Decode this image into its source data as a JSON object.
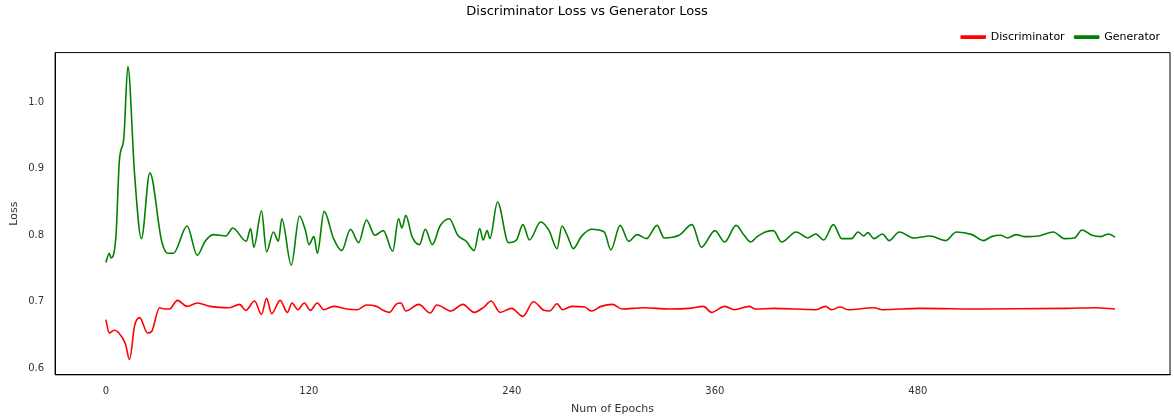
{
  "chart_data": {
    "type": "line",
    "title": "Discriminator Loss vs Generator Loss",
    "xlabel": "Num of Epochs",
    "ylabel": "Loss",
    "xlim": [
      -30,
      629
    ],
    "ylim": [
      0.59,
      1.075
    ],
    "xticks": [
      0,
      120,
      240,
      360,
      480
    ],
    "yticks": [
      0.6,
      0.7,
      0.8,
      0.9,
      {
        "value": 1,
        "label": "1.0"
      }
    ],
    "grid": false,
    "legend": "top right",
    "marker": "none",
    "line_style": "solid",
    "series": [
      {
        "name": "Discriminator",
        "color": "#ff0000",
        "x": [
          0,
          2,
          5,
          7.7,
          11.5,
          14,
          17,
          20,
          24.6,
          27,
          31.7,
          34.6,
          37.5,
          42.3,
          48,
          54,
          61.5,
          73,
          79,
          82.7,
          87.9,
          92,
          95,
          98,
          103,
          107.3,
          110,
          113.5,
          117.3,
          120.8,
          125,
          128.8,
          134.6,
          142.3,
          148.5,
          154.2,
          160,
          164.8,
          167.7,
          171.5,
          174.4,
          177.3,
          185,
          191.7,
          195.6,
          204,
          211,
          217.7,
          223.5,
          227.7,
          233,
          239.8,
          246.5,
          252.7,
          259,
          262.3,
          266.7,
          270,
          275.4,
          283,
          287,
          292.7,
          299.4,
          305,
          317.7,
          333,
          344.6,
          353.3,
          358,
          365.8,
          371.5,
          380.2,
          384,
          394.6,
          419.6,
          425.4,
          429,
          434,
          438.8,
          454,
          459,
          481,
          519.5,
          567.7,
          585,
          596.5
        ],
        "values": [
          0.673,
          0.653,
          0.657,
          0.653,
          0.637,
          0.613,
          0.664,
          0.676,
          0.653,
          0.655,
          0.691,
          0.689,
          0.689,
          0.702,
          0.693,
          0.698,
          0.693,
          0.691,
          0.696,
          0.687,
          0.701,
          0.681,
          0.705,
          0.682,
          0.702,
          0.684,
          0.698,
          0.688,
          0.698,
          0.687,
          0.698,
          0.688,
          0.693,
          0.689,
          0.688,
          0.695,
          0.693,
          0.686,
          0.684,
          0.696,
          0.698,
          0.686,
          0.696,
          0.683,
          0.695,
          0.686,
          0.696,
          0.684,
          0.692,
          0.701,
          0.684,
          0.69,
          0.678,
          0.7,
          0.687,
          0.686,
          0.697,
          0.688,
          0.693,
          0.692,
          0.686,
          0.693,
          0.696,
          0.689,
          0.691,
          0.689,
          0.69,
          0.693,
          0.684,
          0.693,
          0.688,
          0.693,
          0.689,
          0.69,
          0.688,
          0.693,
          0.688,
          0.692,
          0.688,
          0.691,
          0.688,
          0.69,
          0.689,
          0.69,
          0.691,
          0.689
        ]
      },
      {
        "name": "Generator",
        "color": "#008000",
        "x": [
          0,
          2,
          3,
          6,
          8,
          10.6,
          13,
          17,
          21,
          26,
          33,
          36.5,
          40,
          48,
          54,
          58.7,
          63.5,
          71,
          75,
          83,
          85.6,
          87.5,
          92,
          95,
          99,
          102,
          104,
          109.6,
          114.4,
          118,
          120,
          123,
          125,
          129,
          134.6,
          139.4,
          144.6,
          149.4,
          154,
          159,
          164,
          169.6,
          173,
          175,
          177.3,
          181,
          185.4,
          188.8,
          193,
          197.5,
          203,
          208,
          213,
          217.7,
          221,
          223,
          225.4,
          227,
          231.5,
          238,
          242.7,
          246.5,
          250.4,
          257,
          262,
          266.7,
          269.6,
          273,
          276.3,
          281,
          287,
          294.6,
          298.5,
          304,
          309,
          314,
          319.6,
          325.8,
          330,
          338.8,
          346.5,
          352,
          360,
          365.8,
          372.5,
          377.3,
          381,
          385,
          389.8,
          394.6,
          399.4,
          408,
          415,
          419.6,
          424.4,
          430,
          435,
          440.8,
          444.6,
          448,
          450.4,
          454,
          459,
          463,
          469,
          477.5,
          487,
          496.5,
          502.7,
          512,
          518.7,
          523.5,
          529,
          533,
          538,
          542.7,
          551.4,
          560,
          566.7,
          572.5,
          577,
          583,
          588,
          592.7,
          596.5
        ],
        "values": [
          0.759,
          0.773,
          0.766,
          0.8,
          0.913,
          0.946,
          1.054,
          0.891,
          0.795,
          0.894,
          0.791,
          0.773,
          0.773,
          0.814,
          0.77,
          0.791,
          0.801,
          0.799,
          0.811,
          0.791,
          0.81,
          0.782,
          0.837,
          0.775,
          0.805,
          0.791,
          0.825,
          0.755,
          0.829,
          0.807,
          0.786,
          0.798,
          0.773,
          0.836,
          0.795,
          0.777,
          0.809,
          0.789,
          0.823,
          0.8,
          0.807,
          0.776,
          0.825,
          0.811,
          0.83,
          0.798,
          0.786,
          0.809,
          0.786,
          0.814,
          0.825,
          0.8,
          0.791,
          0.777,
          0.81,
          0.793,
          0.807,
          0.795,
          0.85,
          0.789,
          0.793,
          0.816,
          0.793,
          0.82,
          0.807,
          0.78,
          0.814,
          0.798,
          0.78,
          0.798,
          0.809,
          0.805,
          0.778,
          0.815,
          0.791,
          0.801,
          0.795,
          0.815,
          0.796,
          0.8,
          0.816,
          0.782,
          0.807,
          0.79,
          0.815,
          0.8,
          0.79,
          0.798,
          0.805,
          0.807,
          0.79,
          0.805,
          0.796,
          0.802,
          0.793,
          0.816,
          0.795,
          0.795,
          0.805,
          0.799,
          0.804,
          0.795,
          0.802,
          0.792,
          0.805,
          0.796,
          0.799,
          0.792,
          0.805,
          0.801,
          0.792,
          0.798,
          0.8,
          0.796,
          0.801,
          0.798,
          0.799,
          0.805,
          0.795,
          0.796,
          0.808,
          0.8,
          0.798,
          0.802,
          0.797
        ]
      }
    ]
  }
}
